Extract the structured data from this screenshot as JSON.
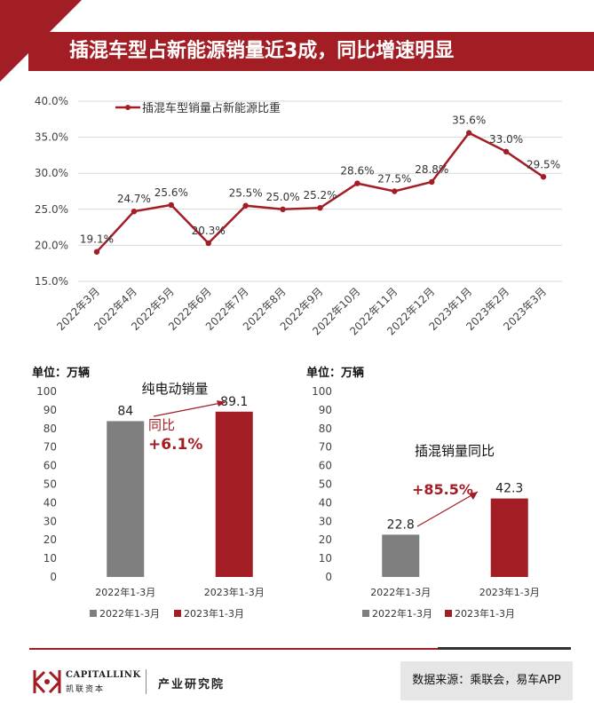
{
  "header": {
    "title": "插混车型占新能源销量近3成，同比增速明显"
  },
  "colors": {
    "accent": "#a31e24",
    "gray_bar": "#7f7f7f",
    "red_bar": "#a31e24"
  },
  "chart_data": [
    {
      "type": "line",
      "legend": "插混车型销量占新能源比重",
      "x": [
        "2022年3月",
        "2022年4月",
        "2022年5月",
        "2022年6月",
        "2022年7月",
        "2022年8月",
        "2022年9月",
        "2022年10月",
        "2022年11月",
        "2022年12月",
        "2023年1月",
        "2023年2月",
        "2023年3月"
      ],
      "values": [
        19.1,
        24.7,
        25.6,
        20.3,
        25.5,
        25.0,
        25.2,
        28.6,
        27.5,
        28.8,
        35.6,
        33.0,
        29.5
      ],
      "data_labels": [
        "19.1%",
        "24.7%",
        "25.6%",
        "20.3%",
        "25.5%",
        "25.0%",
        "25.2%",
        "28.6%",
        "27.5%",
        "28.8%",
        "35.6%",
        "33.0%",
        "29.5%"
      ],
      "ylim": [
        15,
        40
      ],
      "yticks": [
        15,
        20,
        25,
        30,
        35,
        40
      ],
      "ytick_labels": [
        "15.0%",
        "20.0%",
        "25.0%",
        "30.0%",
        "35.0%",
        "40.0%"
      ]
    },
    {
      "type": "bar",
      "title": "纯电动销量",
      "unit": "单位：万辆",
      "categories": [
        "2022年1-3月",
        "2023年1-3月"
      ],
      "values": [
        84,
        89.1
      ],
      "value_labels": [
        "84",
        "89.1"
      ],
      "ylim": [
        0,
        100
      ],
      "yticks": [
        "100",
        "90",
        "80",
        "70",
        "60",
        "50",
        "40",
        "30",
        "20",
        "10",
        "0"
      ],
      "growth_label_line1": "同比",
      "growth_label_line2": "+6.1%",
      "legend": [
        "2022年1-3月",
        "2023年1-3月"
      ]
    },
    {
      "type": "bar",
      "title": "插混销量同比",
      "unit": "单位：万辆",
      "categories": [
        "2022年1-3月",
        "2023年1-3月"
      ],
      "values": [
        22.8,
        42.3
      ],
      "value_labels": [
        "22.8",
        "42.3"
      ],
      "ylim": [
        0,
        100
      ],
      "yticks": [
        "100",
        "90",
        "80",
        "70",
        "60",
        "50",
        "40",
        "30",
        "20",
        "10",
        "0"
      ],
      "growth_label": "+85.5%",
      "legend": [
        "2022年1-3月",
        "2023年1-3月"
      ]
    }
  ],
  "footer": {
    "logo_brand": "CAPITALLINK",
    "logo_cn": "凯联资本",
    "dept": "产业研究院",
    "source": "数据来源：乘联会，易车APP"
  }
}
